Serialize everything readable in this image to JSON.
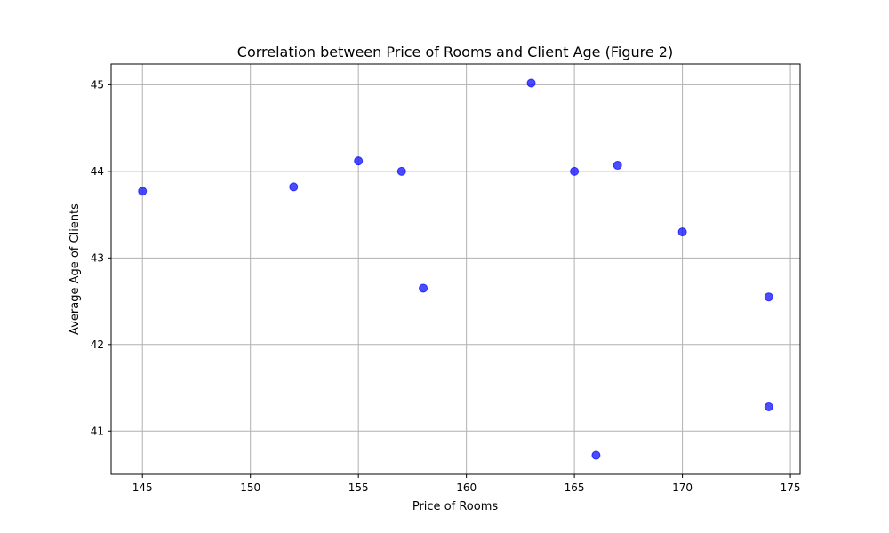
{
  "chart_data": {
    "type": "scatter",
    "title": "Correlation between Price of Rooms and Client Age (Figure 2)",
    "xlabel": "Price of Rooms",
    "ylabel": "Average Age of Clients",
    "xlim": [
      143.55,
      175.45
    ],
    "ylim": [
      40.5,
      45.24
    ],
    "xticks": [
      145,
      150,
      155,
      160,
      165,
      170,
      175
    ],
    "yticks": [
      41,
      42,
      43,
      44,
      45
    ],
    "grid": true,
    "legend": "none",
    "marker_color": "#0000ff",
    "marker_alpha": 0.7,
    "points": [
      {
        "x": 145,
        "y": 43.77
      },
      {
        "x": 152,
        "y": 43.82
      },
      {
        "x": 155,
        "y": 44.12
      },
      {
        "x": 157,
        "y": 44.0
      },
      {
        "x": 158,
        "y": 42.65
      },
      {
        "x": 163,
        "y": 45.02
      },
      {
        "x": 165,
        "y": 44.0
      },
      {
        "x": 166,
        "y": 40.72
      },
      {
        "x": 167,
        "y": 44.07
      },
      {
        "x": 170,
        "y": 43.3
      },
      {
        "x": 174,
        "y": 42.55
      },
      {
        "x": 174,
        "y": 41.28
      }
    ]
  }
}
